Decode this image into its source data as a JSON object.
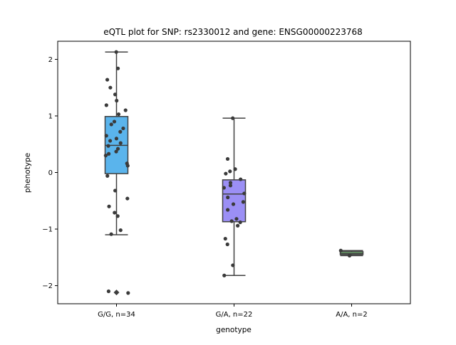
{
  "chart_data": {
    "type": "box",
    "title": "eQTL plot for SNP: rs2330012 and gene: ENSG00000223768",
    "xlabel": "genotype",
    "ylabel": "phenotype",
    "categories": [
      "G/G, n=34",
      "G/A, n=22",
      "A/A, n=2"
    ],
    "ylim": [
      -2.32,
      2.32
    ],
    "yticks": [
      -2,
      -1,
      0,
      1,
      2
    ],
    "ytick_labels": [
      "−2",
      "−1",
      "0",
      "1",
      "2"
    ],
    "grid": false,
    "legend": "none",
    "colors": [
      "#5ab4ec",
      "#9b8ff5",
      "#7fd67f"
    ],
    "boxes": [
      {
        "category": "G/G, n=34",
        "whisker_low": -1.1,
        "q1": -0.02,
        "median": 0.48,
        "q3": 0.99,
        "whisker_high": 2.13,
        "outliers": [
          -2.12
        ],
        "points": [
          2.13,
          1.84,
          1.64,
          1.5,
          1.38,
          1.27,
          1.19,
          1.1,
          1.03,
          0.9,
          0.85,
          0.78,
          0.72,
          0.65,
          0.6,
          0.56,
          0.52,
          0.47,
          0.42,
          0.37,
          0.33,
          0.3,
          0.16,
          0.12,
          -0.06,
          -0.32,
          -0.46,
          -0.6,
          -0.71,
          -0.77,
          -1.02,
          -1.09,
          -2.1,
          -2.13
        ]
      },
      {
        "category": "G/A, n=22",
        "whisker_low": -1.82,
        "q1": -0.87,
        "median": -0.38,
        "q3": -0.13,
        "whisker_high": 0.96,
        "outliers": [],
        "points": [
          0.96,
          0.24,
          0.06,
          0.02,
          -0.02,
          -0.12,
          -0.18,
          -0.23,
          -0.27,
          -0.37,
          -0.44,
          -0.52,
          -0.56,
          -0.66,
          -0.82,
          -0.86,
          -0.88,
          -0.94,
          -1.17,
          -1.27,
          -1.64,
          -1.82
        ]
      },
      {
        "category": "A/A, n=2",
        "whisker_low": -1.47,
        "q1": -1.45,
        "median": -1.43,
        "q3": -1.4,
        "whisker_high": -1.38,
        "outliers": [],
        "points": [
          -1.38,
          -1.47
        ]
      }
    ]
  }
}
